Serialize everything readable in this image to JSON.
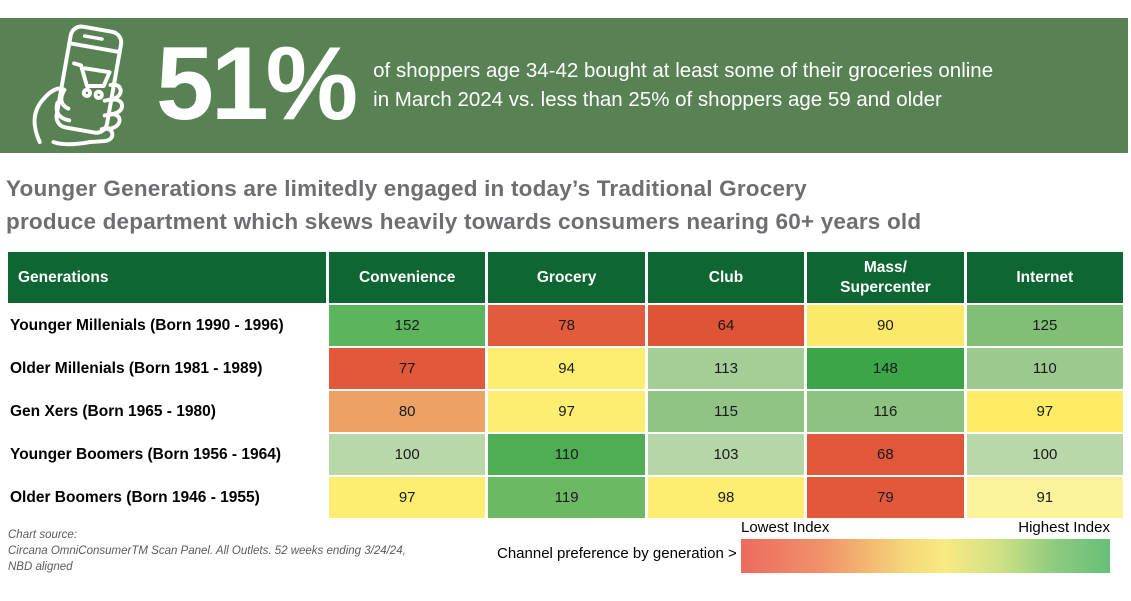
{
  "banner": {
    "stat": "51%",
    "description_line1": "of shoppers age 34-42 bought at least some of their groceries online",
    "description_line2": "in March 2024 vs. less than 25% of shoppers age 59 and older",
    "bg_color": "#598254",
    "icon": "phone-shopping-cart-icon"
  },
  "headline": {
    "line1": "Younger Generations are limitedly engaged in today’s Traditional Grocery",
    "line2": "produce department which skews heavily towards consumers nearing 60+ years old",
    "color": "#6d6e71"
  },
  "chart_data": {
    "type": "heatmap",
    "title": "Younger Generations are limitedly engaged in today’s Traditional Grocery produce department which skews heavily towards consumers nearing 60+ years old",
    "row_header": "Generations",
    "columns": [
      "Convenience",
      "Grocery",
      "Club",
      "Mass/\nSupercenter",
      "Internet"
    ],
    "rows": [
      {
        "label": "Younger Millenials (Born 1990 - 1996)",
        "values": [
          152,
          78,
          64,
          90,
          125
        ],
        "colors": [
          "#5cb45c",
          "#e15b3c",
          "#df5434",
          "#fbe96a",
          "#80bf75"
        ]
      },
      {
        "label": "Older Millenials (Born 1981 - 1989)",
        "values": [
          77,
          94,
          113,
          148,
          110
        ],
        "colors": [
          "#e1583a",
          "#fdee71",
          "#a5cd97",
          "#3aa648",
          "#9cc98e"
        ]
      },
      {
        "label": "Gen Xers (Born 1965 - 1980)",
        "values": [
          80,
          97,
          115,
          116,
          97
        ],
        "colors": [
          "#eca266",
          "#fdee71",
          "#90c384",
          "#8dc281",
          "#fdeb64"
        ]
      },
      {
        "label": "Younger Boomers (Born 1956 - 1964)",
        "values": [
          100,
          110,
          103,
          68,
          100
        ],
        "colors": [
          "#b9d8aa",
          "#4fae53",
          "#b5d6a7",
          "#e0573a",
          "#b9d8aa"
        ]
      },
      {
        "label": "Older Boomers (Born 1946 - 1955)",
        "values": [
          97,
          119,
          98,
          79,
          91
        ],
        "colors": [
          "#fdee71",
          "#6cb964",
          "#fdee71",
          "#e1583a",
          "#fbf29c"
        ]
      }
    ],
    "header_bg": "#0e6633",
    "legend": {
      "note": "Channel preference by generation >",
      "low_label": "Lowest Index",
      "high_label": "Highest Index"
    }
  },
  "source": {
    "line1": "Chart source:",
    "line2": "Circana OmniConsumerTM Scan Panel. All Outlets. 52 weeks ending 3/24/24,",
    "line3": "NBD aligned"
  }
}
